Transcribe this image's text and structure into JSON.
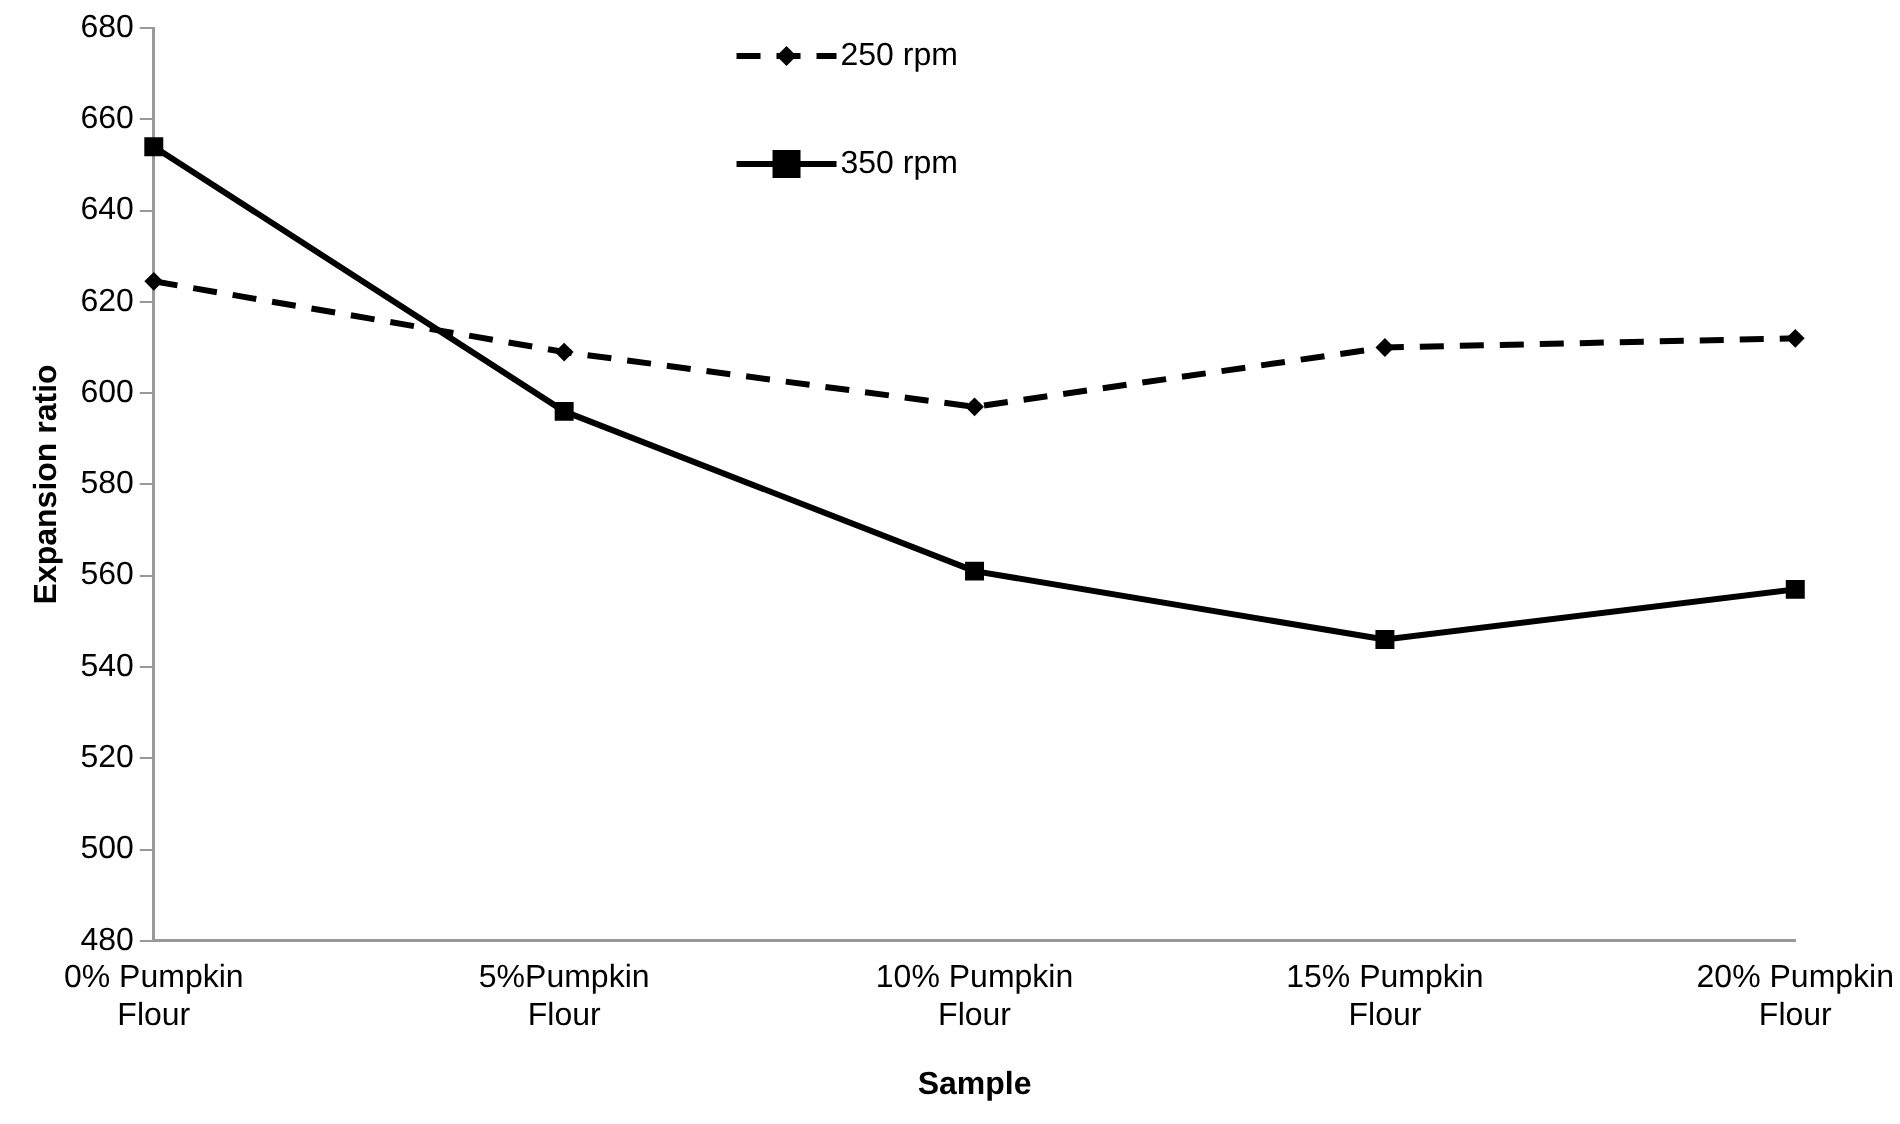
{
  "chart_data": {
    "type": "line",
    "xlabel": "Sample",
    "ylabel": "Expansion ratio",
    "categories": [
      "0% Pumpkin Flour",
      "5%Pumpkin Flour",
      "10% Pumpkin Flour",
      "15% Pumpkin Flour",
      "20% Pumpkin Flour"
    ],
    "series": [
      {
        "name": "250 rpm",
        "color": "#000000",
        "marker": "diamond",
        "line_style": "dashed",
        "values": [
          624.5,
          609,
          597,
          610,
          612
        ]
      },
      {
        "name": "350 rpm",
        "color": "#000000",
        "marker": "square",
        "line_style": "solid",
        "values": [
          654,
          596,
          561,
          546,
          557
        ]
      }
    ],
    "ylim": [
      480,
      680
    ],
    "yticks": [
      480,
      500,
      520,
      540,
      560,
      580,
      600,
      620,
      640,
      660,
      680
    ],
    "grid": false,
    "legend": "top"
  }
}
